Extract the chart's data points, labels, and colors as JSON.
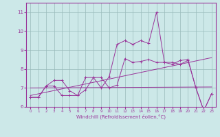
{
  "xlabel": "Windchill (Refroidissement éolien,°C)",
  "bg_color": "#cce8e8",
  "line_color": "#993399",
  "grid_color": "#99bbbb",
  "x_data": [
    0,
    1,
    2,
    3,
    4,
    5,
    6,
    7,
    8,
    9,
    10,
    11,
    12,
    13,
    14,
    15,
    16,
    17,
    18,
    19,
    20,
    21,
    22,
    23
  ],
  "series1": [
    6.5,
    6.5,
    7.1,
    7.4,
    7.4,
    6.85,
    6.6,
    6.9,
    7.55,
    7.0,
    7.6,
    9.3,
    9.5,
    9.3,
    9.5,
    9.35,
    11.0,
    8.35,
    8.35,
    8.25,
    8.45,
    7.0,
    5.8,
    6.7
  ],
  "series2": [
    6.5,
    6.5,
    7.1,
    7.1,
    6.6,
    6.6,
    6.6,
    7.55,
    7.55,
    7.55,
    7.0,
    7.15,
    8.55,
    8.35,
    8.4,
    8.5,
    8.35,
    8.35,
    8.25,
    8.45,
    8.5,
    7.0,
    5.8,
    6.7
  ],
  "series3_x": [
    0,
    23
  ],
  "series3_y": [
    6.6,
    8.6
  ],
  "series4_x": [
    0,
    23
  ],
  "series4_y": [
    7.0,
    7.05
  ],
  "ylim": [
    6.0,
    11.5
  ],
  "xlim": [
    -0.5,
    23.5
  ],
  "yticks": [
    6,
    7,
    8,
    9,
    10,
    11
  ],
  "xticks": [
    0,
    1,
    2,
    3,
    4,
    5,
    6,
    7,
    8,
    9,
    10,
    11,
    12,
    13,
    14,
    15,
    16,
    17,
    18,
    19,
    20,
    21,
    22,
    23
  ]
}
